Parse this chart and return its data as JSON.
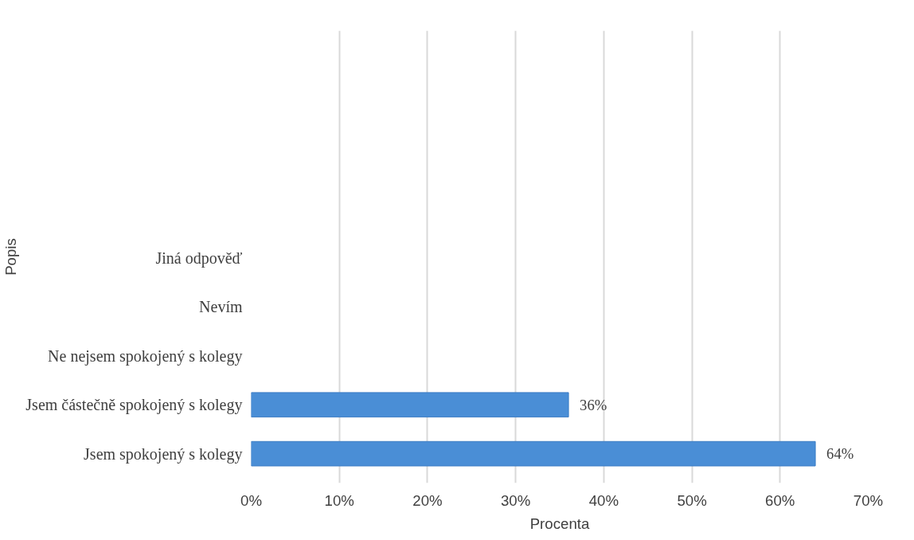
{
  "chart_data": {
    "type": "bar",
    "orientation": "horizontal",
    "xlabel": "Procenta",
    "ylabel": "Popis",
    "categories": [
      null,
      null,
      null,
      null,
      "Jiná odpověď",
      "Nevím",
      "Ne nejsem spokojený s kolegy",
      "Jsem částečně spokojený s kolegy",
      "Jsem spokojený s kolegy"
    ],
    "values": [
      null,
      null,
      null,
      null,
      null,
      null,
      null,
      36,
      64
    ],
    "value_labels": [
      null,
      null,
      null,
      null,
      null,
      null,
      null,
      "36%",
      "64%"
    ],
    "color": "#4a8ed6",
    "xlim": [
      0,
      70
    ],
    "xticks": [
      {
        "value": 0,
        "label": "0%"
      },
      {
        "value": 10,
        "label": "10%"
      },
      {
        "value": 20,
        "label": "20%"
      },
      {
        "value": 30,
        "label": "30%"
      },
      {
        "value": 40,
        "label": "40%"
      },
      {
        "value": 50,
        "label": "50%"
      },
      {
        "value": 60,
        "label": "60%"
      },
      {
        "value": 70,
        "label": "70%"
      }
    ],
    "grid": "x"
  }
}
